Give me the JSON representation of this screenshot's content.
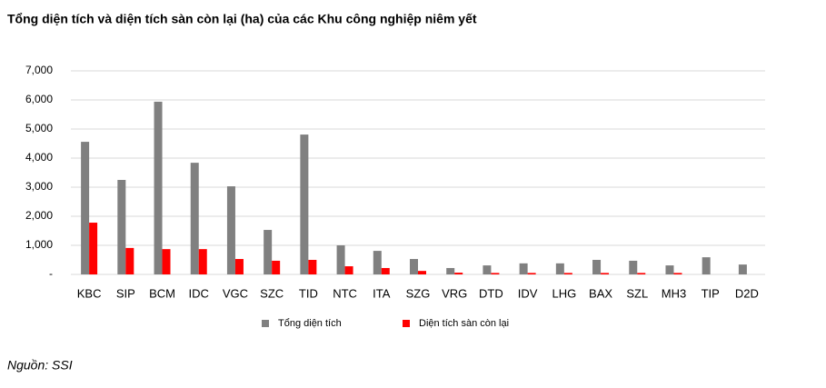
{
  "chart_data": {
    "type": "bar",
    "title": "Tổng diện tích và diện tích sàn còn lại (ha) của các Khu công nghiệp niêm yết",
    "source": "Nguồn: SSI",
    "categories": [
      "KBC",
      "SIP",
      "BCM",
      "IDC",
      "VGC",
      "SZC",
      "TID",
      "NTC",
      "ITA",
      "SZG",
      "VRG",
      "DTD",
      "IDV",
      "LHG",
      "BAX",
      "SZL",
      "MH3",
      "TIP",
      "D2D"
    ],
    "series": [
      {
        "name": "Tổng diện tích",
        "color": "#808080",
        "values": [
          4560,
          3250,
          5940,
          3840,
          3030,
          1530,
          4810,
          1000,
          810,
          530,
          220,
          310,
          380,
          380,
          500,
          470,
          310,
          590,
          340
        ]
      },
      {
        "name": "Diện tích sàn còn lại",
        "color": "#ff0000",
        "values": [
          1780,
          910,
          870,
          870,
          530,
          470,
          500,
          280,
          220,
          120,
          60,
          50,
          50,
          50,
          50,
          50,
          50,
          0,
          0
        ]
      }
    ],
    "ylim": [
      0,
      7000
    ],
    "yticks": [
      {
        "value": 0,
        "label": "-"
      },
      {
        "value": 1000,
        "label": "1,000"
      },
      {
        "value": 2000,
        "label": "2,000"
      },
      {
        "value": 3000,
        "label": "3,000"
      },
      {
        "value": 4000,
        "label": "4,000"
      },
      {
        "value": 5000,
        "label": "5,000"
      },
      {
        "value": 6000,
        "label": "6,000"
      },
      {
        "value": 7000,
        "label": "7,000"
      }
    ],
    "grid": true
  }
}
